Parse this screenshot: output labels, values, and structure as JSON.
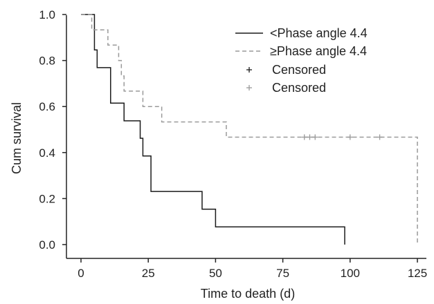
{
  "chart_data": {
    "type": "line",
    "subtype": "kaplan-meier",
    "title": "",
    "xlabel": "Time to death (d)",
    "ylabel": "Cum survival",
    "xlim": [
      -5,
      128
    ],
    "ylim": [
      -0.06,
      1.0
    ],
    "xticks": [
      0,
      25,
      50,
      75,
      100,
      125
    ],
    "yticks": [
      0.0,
      0.2,
      0.4,
      0.6,
      0.8,
      1.0
    ],
    "xtick_labels": [
      "0",
      "25",
      "50",
      "75",
      "100",
      "125"
    ],
    "ytick_labels": [
      "0.0",
      "0.2",
      "0.4",
      "0.6",
      "0.8",
      "1.0"
    ],
    "grid": false,
    "legend_position": "top-right",
    "series": [
      {
        "name": "<Phase angle 4.4",
        "color": "#1a1a1a",
        "dash": "solid",
        "steps": [
          {
            "x": 0,
            "y": 1.0
          },
          {
            "x": 5,
            "y": 0.846
          },
          {
            "x": 6,
            "y": 0.769
          },
          {
            "x": 11,
            "y": 0.615
          },
          {
            "x": 16,
            "y": 0.538
          },
          {
            "x": 22,
            "y": 0.462
          },
          {
            "x": 23,
            "y": 0.385
          },
          {
            "x": 26,
            "y": 0.231
          },
          {
            "x": 45,
            "y": 0.154
          },
          {
            "x": 50,
            "y": 0.077
          },
          {
            "x": 98,
            "y": 0.0
          }
        ],
        "censored": []
      },
      {
        "name": "≥Phase angle 4.4",
        "color": "#999999",
        "dash": "dashed",
        "steps": [
          {
            "x": 0,
            "y": 1.0
          },
          {
            "x": 4,
            "y": 0.933
          },
          {
            "x": 10,
            "y": 0.867
          },
          {
            "x": 14,
            "y": 0.8
          },
          {
            "x": 15,
            "y": 0.733
          },
          {
            "x": 16,
            "y": 0.667
          },
          {
            "x": 23,
            "y": 0.6
          },
          {
            "x": 30,
            "y": 0.533
          },
          {
            "x": 54,
            "y": 0.467
          },
          {
            "x": 125,
            "y": 0.0
          }
        ],
        "censored": [
          {
            "x": 83,
            "y": 0.467
          },
          {
            "x": 85,
            "y": 0.467
          },
          {
            "x": 87,
            "y": 0.467
          },
          {
            "x": 100,
            "y": 0.467
          },
          {
            "x": 111,
            "y": 0.467
          }
        ]
      }
    ],
    "legend": [
      {
        "label": "<Phase angle 4.4",
        "kind": "solid-line",
        "color": "#1a1a1a"
      },
      {
        "label": "≥Phase angle 4.4",
        "kind": "dashed-line",
        "color": "#999999"
      },
      {
        "label": "Censored",
        "kind": "plus-marker",
        "color": "#1a1a1a"
      },
      {
        "label": "Censored",
        "kind": "plus-marker",
        "color": "#999999"
      }
    ]
  }
}
